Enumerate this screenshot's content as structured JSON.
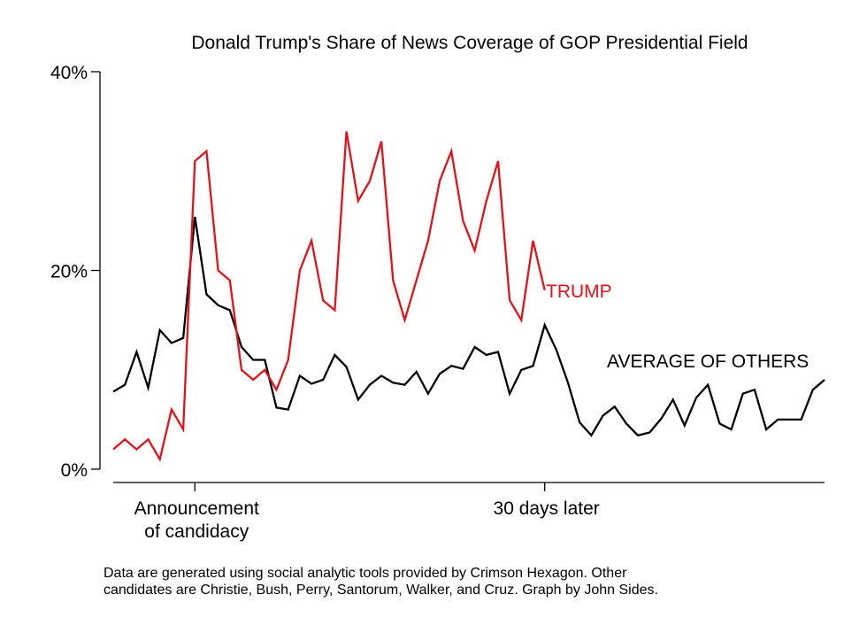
{
  "chart_data": {
    "type": "line",
    "title": "Donald Trump's Share of News Coverage of GOP Presidential Field",
    "xlabel": "",
    "ylabel": "",
    "ylim": [
      0,
      40
    ],
    "xlim": [
      -7,
      54
    ],
    "y_ticks": [
      {
        "value": 0,
        "label": "0%"
      },
      {
        "value": 20,
        "label": "20%"
      },
      {
        "value": 40,
        "label": "40%"
      }
    ],
    "x_ticks": [
      {
        "value": 0,
        "label_lines": [
          "Announcement",
          "of candidacy"
        ]
      },
      {
        "value": 30,
        "label_lines": [
          "30 days later"
        ]
      }
    ],
    "grid": false,
    "x_unit": "days relative to announcement of candidacy",
    "series": [
      {
        "name": "TRUMP",
        "color": "#e0131b",
        "x_start": -7,
        "values": [
          2,
          3,
          2,
          3,
          1,
          6,
          4,
          31,
          32,
          20,
          19,
          10,
          9,
          10,
          8,
          11,
          20,
          23,
          17,
          16,
          34,
          27,
          29,
          33,
          19,
          15,
          19,
          23,
          29,
          32,
          25,
          22,
          27,
          31,
          17,
          15,
          23,
          18
        ]
      },
      {
        "name": "AVERAGE OF OTHERS",
        "color": "#000000",
        "x_start": -7,
        "values": [
          7.8,
          8.5,
          11.8,
          8.2,
          14,
          12.7,
          13.2,
          25.4,
          17.6,
          16.5,
          16,
          12.3,
          11,
          11,
          6.2,
          6,
          9.4,
          8.6,
          9,
          11.5,
          10.3,
          7,
          8.5,
          9.4,
          8.7,
          8.5,
          9.8,
          7.6,
          9.6,
          10.4,
          10.1,
          12.3,
          11.5,
          11.8,
          7.6,
          10,
          10.4,
          14.5,
          12,
          8.7,
          4.7,
          3.4,
          5.4,
          6.3,
          4.6,
          3.4,
          3.7,
          5.1,
          7,
          4.4,
          7.2,
          8.5,
          4.6,
          4,
          7.6,
          8,
          4,
          5,
          5,
          5,
          8,
          9
        ]
      }
    ]
  },
  "footnote": {
    "line1": "Data are generated using social analytic tools provided by Crimson Hexagon. Other",
    "line2": "candidates are Christie, Bush, Perry, Santorum, Walker, and Cruz. Graph by John Sides."
  }
}
